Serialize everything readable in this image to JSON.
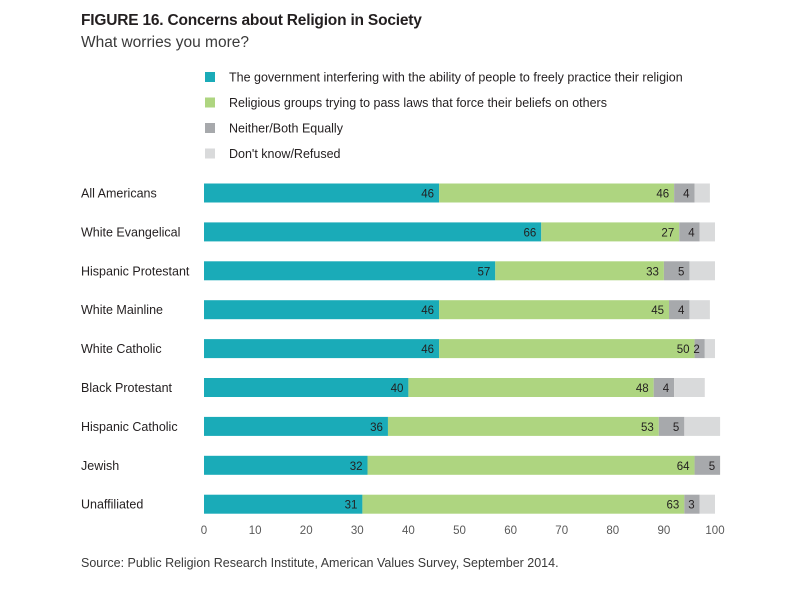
{
  "title": "FIGURE 16. Concerns about Religion in Society",
  "subtitle": "What worries you more?",
  "source": "Source: Public Religion Research Institute, American Values Survey, September 2014.",
  "colors": {
    "series1": "#1aabb8",
    "series2": "#aed580",
    "series3": "#a7a9ac",
    "series4": "#d9dadb",
    "label": "#231f20",
    "axis": "#595959"
  },
  "chart_data": {
    "type": "bar",
    "orientation": "horizontal",
    "stacked": true,
    "legend_position": "top",
    "xlim": [
      0,
      100
    ],
    "xticks": [
      0,
      10,
      20,
      30,
      40,
      50,
      60,
      70,
      80,
      90,
      100
    ],
    "categories": [
      "All Americans",
      "White Evangelical",
      "Hispanic Protestant",
      "White Mainline",
      "White Catholic",
      "Black Protestant",
      "Hispanic Catholic",
      "Jewish",
      "Unaffiliated"
    ],
    "series": [
      {
        "name": "The government interfering with the ability of people to freely practice their religion",
        "values": [
          46,
          66,
          57,
          46,
          46,
          40,
          36,
          32,
          31
        ]
      },
      {
        "name": "Religious groups trying to pass laws that force their beliefs on others",
        "values": [
          46,
          27,
          33,
          45,
          50,
          48,
          53,
          64,
          63
        ]
      },
      {
        "name": "Neither/Both Equally",
        "values": [
          4,
          4,
          5,
          4,
          2,
          4,
          5,
          5,
          3
        ]
      },
      {
        "name": "Don't know/Refused",
        "values": [
          3,
          3,
          5,
          4,
          2,
          6,
          7,
          0,
          3
        ]
      }
    ],
    "labeled_series": [
      0,
      1,
      2
    ]
  }
}
